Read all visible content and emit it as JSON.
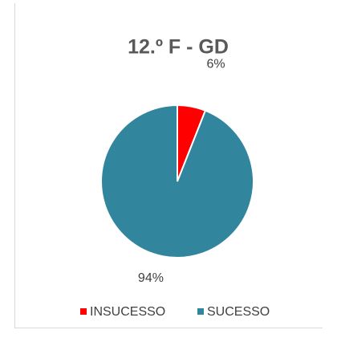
{
  "chart_data": {
    "type": "pie",
    "title": "12.º F - GD",
    "categories": [
      "INSUCESSO",
      "SUCESSO"
    ],
    "values": [
      6,
      94
    ],
    "value_labels": [
      "6%",
      "94%"
    ],
    "colors": [
      "#ff0000",
      "#31859c"
    ]
  }
}
